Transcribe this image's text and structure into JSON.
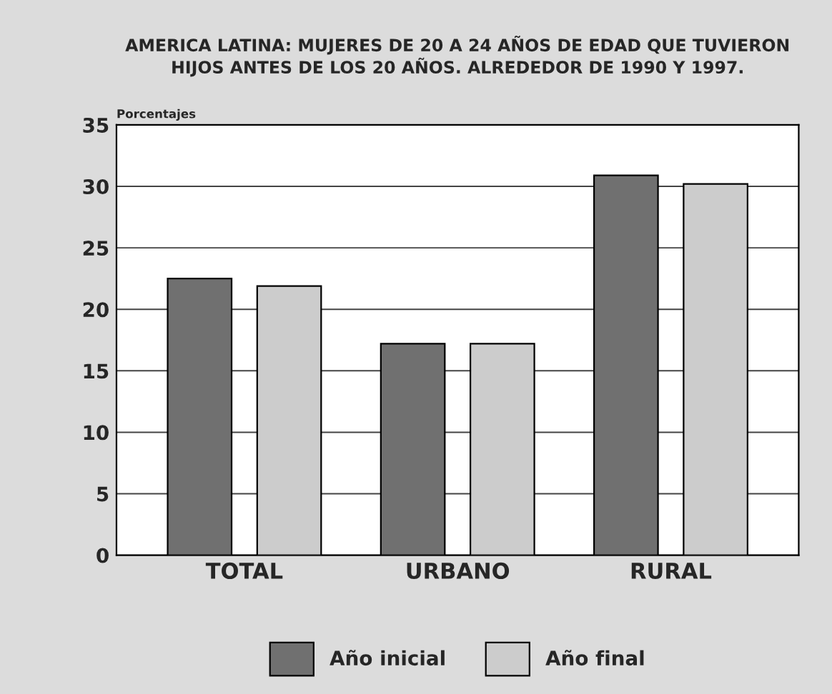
{
  "chart_data": {
    "type": "bar",
    "title": "AMERICA LATINA: MUJERES DE 20 A 24 AÑOS DE EDAD QUE TUVIERON\nHIJOS ANTES DE LOS 20 AÑOS. ALREDEDOR DE 1990 Y 1997.",
    "ylabel": "Porcentajes",
    "categories": [
      "TOTAL",
      "URBANO",
      "RURAL"
    ],
    "series": [
      {
        "name": "Año inicial",
        "color": "#707070",
        "values": [
          22.5,
          17.2,
          30.9
        ]
      },
      {
        "name": "Año final",
        "color": "#cccccc",
        "values": [
          21.9,
          17.2,
          30.2
        ]
      }
    ],
    "ylim": [
      0,
      35
    ],
    "yticks": [
      0,
      5,
      10,
      15,
      20,
      25,
      30,
      35
    ],
    "grid": "y",
    "legend": "bottom"
  }
}
